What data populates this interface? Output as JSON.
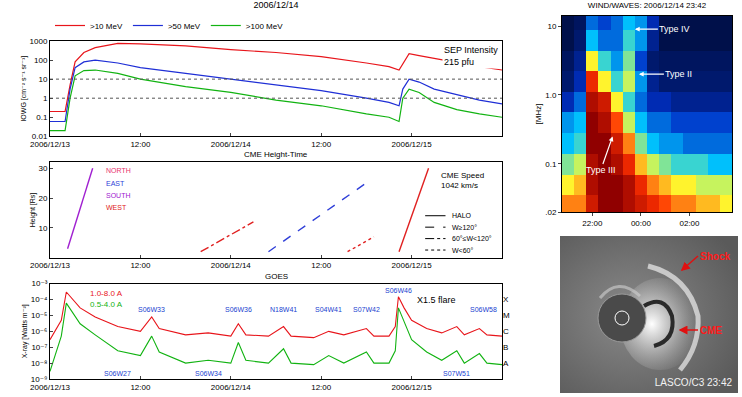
{
  "chart_data": [
    {
      "type": "line",
      "title": "2006/12/14",
      "y_label": "IOWG [cm⁻² s⁻¹ sr⁻¹]",
      "log": "y",
      "grid": false,
      "legend": "top",
      "annotation": "SEP Intensity\n215 pfu",
      "x": [
        "2006-12-13 00:00",
        "2006-12-13 02:00",
        "2006-12-13 02:40",
        "2006-12-13 03:20",
        "2006-12-13 04:30",
        "2006-12-13 06:00",
        "2006-12-13 09:00",
        "2006-12-13 12:00",
        "2006-12-13 18:00",
        "2006-12-14 00:00",
        "2006-12-14 06:00",
        "2006-12-14 12:00",
        "2006-12-14 18:00",
        "2006-12-14 21:00",
        "2006-12-14 22:20",
        "2006-12-14 22:50",
        "2006-12-14 23:40",
        "2006-12-15 01:00",
        "2006-12-15 03:00",
        "2006-12-15 06:00",
        "2006-12-15 09:00",
        "2006-12-15 12:00"
      ],
      "series": [
        {
          "name": ">10 MeV",
          "color": "#e8151b",
          "values": [
            0.2,
            0.2,
            5,
            80,
            250,
            450,
            750,
            700,
            550,
            350,
            250,
            150,
            70,
            45,
            30,
            60,
            215,
            170,
            120,
            70,
            45,
            30
          ]
        },
        {
          "name": ">50 MeV",
          "color": "#1f2fd6",
          "values": [
            0.06,
            0.06,
            3,
            40,
            80,
            100,
            70,
            40,
            20,
            10,
            5,
            2.5,
            1,
            0.6,
            0.4,
            3,
            10,
            7,
            3,
            1.5,
            0.8,
            0.5
          ]
        },
        {
          "name": ">100 MeV",
          "color": "#12b312",
          "values": [
            0.02,
            0.02,
            1,
            15,
            28,
            30,
            20,
            10,
            4,
            2,
            0.8,
            0.4,
            0.15,
            0.1,
            0.06,
            1,
            3,
            2,
            0.6,
            0.25,
            0.15,
            0.1
          ]
        }
      ],
      "thresholds": [
        1,
        10
      ],
      "xlim": [
        "2006-12-13 00:00",
        "2006-12-15 12:00"
      ],
      "xticks": [
        {
          "value": "2006-12-13 00:00",
          "label": "2006/12/13"
        },
        {
          "value": "2006-12-13 12:00",
          "label": "12:00"
        },
        {
          "value": "2006-12-14 00:00",
          "label": "2006/12/14"
        },
        {
          "value": "2006-12-14 12:00",
          "label": "12:00"
        },
        {
          "value": "2006-12-15 00:00",
          "label": "2006/12/15"
        }
      ],
      "ylim": [
        0.01,
        1000
      ],
      "yticks": [
        0.01,
        0.1,
        1,
        10,
        100,
        1000
      ]
    },
    {
      "type": "line",
      "title": "CME Height-Time",
      "y_label": "Height [Rs]",
      "grid": false,
      "annotation": "CME Speed\n1042 km/s",
      "directions": [
        {
          "label": "NORTH",
          "color": "#e8336e"
        },
        {
          "label": "EAST",
          "color": "#2f3fd8"
        },
        {
          "label": "SOUTH",
          "color": "#a020d0"
        },
        {
          "label": "WEST",
          "color": "#e02020"
        }
      ],
      "key": [
        {
          "label": "HALO",
          "line_style": "solid"
        },
        {
          "label": "W≥120°",
          "line_style": "dash"
        },
        {
          "label": "60°≤W<120°",
          "line_style": "dashdot"
        },
        {
          "label": "W<60°",
          "line_style": "dot"
        }
      ],
      "series": [
        {
          "color": "#a020d0",
          "line_style": "solid",
          "x": [
            "2006-12-13 02:20",
            "2006-12-13 05:40"
          ],
          "values": [
            3,
            30
          ]
        },
        {
          "color": "#e02020",
          "line_style": "dashdot",
          "x": [
            "2006-12-13 20:00",
            "2006-12-14 03:00"
          ],
          "values": [
            2,
            12
          ]
        },
        {
          "color": "#2f3fd8",
          "line_style": "dash",
          "x": [
            "2006-12-14 05:00",
            "2006-12-14 18:30"
          ],
          "values": [
            2,
            26
          ]
        },
        {
          "color": "#e02020",
          "line_style": "dot",
          "x": [
            "2006-12-14 15:30",
            "2006-12-14 19:00"
          ],
          "values": [
            2,
            7
          ]
        },
        {
          "color": "#e02020",
          "line_style": "solid",
          "x": [
            "2006-12-14 22:20",
            "2006-12-15 02:15"
          ],
          "values": [
            2,
            30
          ]
        }
      ],
      "xlim": [
        "2006-12-13 00:00",
        "2006-12-15 12:00"
      ],
      "xticks": [
        {
          "value": "2006-12-13 00:00",
          "label": "2006/12/13"
        },
        {
          "value": "2006-12-13 12:00",
          "label": "12:00"
        },
        {
          "value": "2006-12-14 00:00",
          "label": "2006/12/14"
        },
        {
          "value": "2006-12-14 12:00",
          "label": "12:00"
        },
        {
          "value": "2006-12-15 00:00",
          "label": "2006/12/15"
        }
      ],
      "ylim": [
        0,
        32
      ],
      "yticks": [
        10,
        20,
        30
      ]
    },
    {
      "type": "line",
      "title": "GOES",
      "y_label": "X-ray [Watts m⁻²]",
      "log": "y",
      "grid": false,
      "legend": "top-left",
      "x": [
        "2006-12-13 00:00",
        "2006-12-13 01:30",
        "2006-12-13 02:10",
        "2006-12-13 03:00",
        "2006-12-13 04:00",
        "2006-12-13 06:00",
        "2006-12-13 09:00",
        "2006-12-13 12:00",
        "2006-12-13 13:30",
        "2006-12-13 14:30",
        "2006-12-13 18:00",
        "2006-12-13 21:00",
        "2006-12-14 00:00",
        "2006-12-14 01:00",
        "2006-12-14 02:00",
        "2006-12-14 05:00",
        "2006-12-14 07:00",
        "2006-12-14 08:00",
        "2006-12-14 11:00",
        "2006-12-14 13:00",
        "2006-12-14 15:00",
        "2006-12-14 18:00",
        "2006-12-14 19:00",
        "2006-12-14 21:00",
        "2006-12-14 21:50",
        "2006-12-14 22:15",
        "2006-12-14 23:00",
        "2006-12-15 00:00",
        "2006-12-15 02:00",
        "2006-12-15 04:00",
        "2006-12-15 06:00",
        "2006-12-15 07:00",
        "2006-12-15 09:00",
        "2006-12-15 10:00",
        "2006-12-15 12:00"
      ],
      "series": [
        {
          "name": "1.0-8.0 A",
          "color": "#e8151b",
          "values": [
            3e-07,
            5e-06,
            0.0003,
            0.0001,
            3e-05,
            8e-06,
            2e-06,
            1e-06,
            8e-06,
            1.5e-06,
            6e-07,
            8e-07,
            5e-07,
            3e-06,
            6e-07,
            5e-07,
            2e-06,
            5e-07,
            4e-07,
            1e-06,
            6e-07,
            1.5e-06,
            5e-07,
            5e-07,
            2e-06,
            0.00015,
            3e-05,
            5e-06,
            1.5e-06,
            8e-07,
            2e-06,
            6e-07,
            1.5e-06,
            6e-07,
            5e-07
          ]
        },
        {
          "name": "0.5-4.0 A",
          "color": "#12b312",
          "values": [
            3e-09,
            5e-07,
            6e-05,
            1.5e-05,
            3e-06,
            6e-07,
            6e-08,
            3e-08,
            5e-07,
            5e-08,
            1e-08,
            1.5e-08,
            1e-08,
            2e-07,
            1.5e-08,
            1e-08,
            8e-08,
            1e-08,
            8e-09,
            3e-08,
            1e-08,
            5e-08,
            1e-08,
            1e-08,
            6e-08,
            3e-05,
            4e-06,
            3e-07,
            5e-08,
            1.5e-08,
            6e-08,
            1e-08,
            4e-08,
            1e-08,
            8e-09
          ]
        }
      ],
      "flare_labels": [
        {
          "text": "S06W33",
          "x": "2006-12-13 13:30",
          "y": 2.5e-05
        },
        {
          "text": "S06W36",
          "x": "2006-12-14 01:00",
          "y": 2.5e-05
        },
        {
          "text": "N18W41",
          "x": "2006-12-14 07:00",
          "y": 2.5e-05
        },
        {
          "text": "S04W41",
          "x": "2006-12-14 13:00",
          "y": 2.5e-05
        },
        {
          "text": "S07W42",
          "x": "2006-12-14 18:00",
          "y": 2.5e-05
        },
        {
          "text": "S06W46",
          "x": "2006-12-14 22:15",
          "y": 0.0004
        },
        {
          "text": "S06W58",
          "x": "2006-12-15 09:30",
          "y": 2.5e-05
        },
        {
          "text": "S06W27",
          "x": "2006-12-13 09:00",
          "y": 2.2e-09
        },
        {
          "text": "S06W34",
          "x": "2006-12-13 21:00",
          "y": 2.2e-09
        },
        {
          "text": "S07W51",
          "x": "2006-12-15 06:00",
          "y": 2.2e-09
        }
      ],
      "flare_note": {
        "text": "X1.5 flare",
        "x": "2006-12-15 00:30",
        "y": 0.0001
      },
      "xlim": [
        "2006-12-13 00:00",
        "2006-12-15 12:00"
      ],
      "xticks": [
        {
          "value": "2006-12-13 00:00",
          "label": "2006/12/13"
        },
        {
          "value": "2006-12-13 12:00",
          "label": "12:00"
        },
        {
          "value": "2006-12-14 00:00",
          "label": "2006/12/14"
        },
        {
          "value": "2006-12-14 12:00",
          "label": "12:00"
        },
        {
          "value": "2006-12-15 00:00",
          "label": "2006/12/15"
        }
      ],
      "ylim": [
        1e-09,
        0.001
      ],
      "yticks": [
        {
          "value": 1e-09,
          "label": "10⁻⁹"
        },
        {
          "value": 1e-08,
          "label": "10⁻⁸"
        },
        {
          "value": 1e-07,
          "label": "10⁻⁷"
        },
        {
          "value": 1e-06,
          "label": "10⁻⁶"
        },
        {
          "value": 1e-05,
          "label": "10⁻⁵"
        },
        {
          "value": 0.0001,
          "label": "10⁻⁴"
        },
        {
          "value": 0.001,
          "label": "10⁻³"
        }
      ],
      "y2lim": [
        1e-09,
        0.001
      ],
      "y2ticks": [
        {
          "value": 1e-08,
          "label": "A"
        },
        {
          "value": 1e-07,
          "label": "B"
        },
        {
          "value": 1e-06,
          "label": "C"
        },
        {
          "value": 1e-05,
          "label": "M"
        },
        {
          "value": 0.0001,
          "label": "X"
        }
      ]
    },
    {
      "type": "heatmap",
      "title": "WIND/WAVES: 2006/12/14 23:42",
      "y_label": "[MHz]",
      "log": "y",
      "grid": false,
      "x": [
        "2006-12-14 21:00",
        "2006-12-14 21:30",
        "2006-12-14 22:00",
        "2006-12-14 22:30",
        "2006-12-14 23:00",
        "2006-12-14 23:30",
        "2006-12-15 00:00",
        "2006-12-15 00:30",
        "2006-12-15 01:00",
        "2006-12-15 01:30",
        "2006-12-15 02:00",
        "2006-12-15 02:30",
        "2006-12-15 03:00",
        "2006-12-15 03:30"
      ],
      "y_edges": [
        0.02,
        0.035,
        0.07,
        0.14,
        0.28,
        0.56,
        1.1,
        2.2,
        4.4,
        8.8,
        14
      ],
      "cells": [
        [
          0.7,
          0.7,
          0.85,
          0.95,
          0.95,
          0.9,
          0.85,
          0.8,
          0.75,
          0.7,
          0.7,
          0.65,
          0.65,
          0.6
        ],
        [
          0.6,
          0.65,
          0.9,
          0.95,
          0.95,
          0.9,
          0.8,
          0.7,
          0.65,
          0.6,
          0.6,
          0.55,
          0.55,
          0.55
        ],
        [
          0.5,
          0.55,
          0.9,
          0.95,
          0.9,
          0.8,
          0.65,
          0.55,
          0.5,
          0.45,
          0.45,
          0.45,
          0.4,
          0.4
        ],
        [
          0.4,
          0.45,
          0.95,
          0.95,
          0.85,
          0.7,
          0.5,
          0.4,
          0.35,
          0.35,
          0.3,
          0.3,
          0.3,
          0.3
        ],
        [
          0.35,
          0.4,
          0.95,
          0.9,
          0.75,
          0.55,
          0.4,
          0.3,
          0.3,
          0.25,
          0.25,
          0.25,
          0.25,
          0.25
        ],
        [
          0.2,
          0.3,
          0.9,
          0.85,
          0.6,
          0.45,
          0.3,
          0.2,
          0.2,
          0.15,
          0.15,
          0.15,
          0.15,
          0.15
        ],
        [
          0.1,
          0.2,
          0.8,
          0.6,
          0.45,
          0.55,
          0.35,
          0.15,
          0.1,
          0.1,
          0.1,
          0.1,
          0.1,
          0.1
        ],
        [
          0.08,
          0.15,
          0.6,
          0.45,
          0.35,
          0.5,
          0.25,
          0.1,
          0.08,
          0.08,
          0.08,
          0.08,
          0.08,
          0.08
        ],
        [
          0.05,
          0.1,
          0.4,
          0.3,
          0.3,
          0.45,
          0.35,
          0.15,
          0.05,
          0.05,
          0.05,
          0.05,
          0.05,
          0.05
        ],
        [
          0.05,
          0.08,
          0.3,
          0.25,
          0.3,
          0.4,
          0.35,
          0.2,
          0.05,
          0.05,
          0.05,
          0.05,
          0.05,
          0.05
        ]
      ],
      "annotations": [
        {
          "text": "Type IV",
          "x": "2006-12-14 23:45",
          "y": 9
        },
        {
          "text": "Type II",
          "x": "2006-12-14 23:55",
          "y": 2
        },
        {
          "text": "Type III",
          "x": "2006-12-14 22:50",
          "y": 0.25
        }
      ],
      "xlim": [
        "2006-12-14 20:45",
        "2006-12-15 03:45"
      ],
      "xticks": [
        {
          "value": "2006-12-14 22:00",
          "label": "22:00"
        },
        {
          "value": "2006-12-15 00:00",
          "label": "00:00"
        },
        {
          "value": "2006-12-15 02:00",
          "label": "02:00"
        }
      ],
      "ylim": [
        0.02,
        14
      ],
      "yticks": [
        {
          "value": 0.02,
          "label": ".02"
        },
        0.1,
        {
          "value": 1,
          "label": "1.0"
        },
        10
      ]
    }
  ],
  "image": {
    "caption": "LASCO/C3 23:42",
    "labels": [
      "Shock",
      "CME"
    ]
  }
}
